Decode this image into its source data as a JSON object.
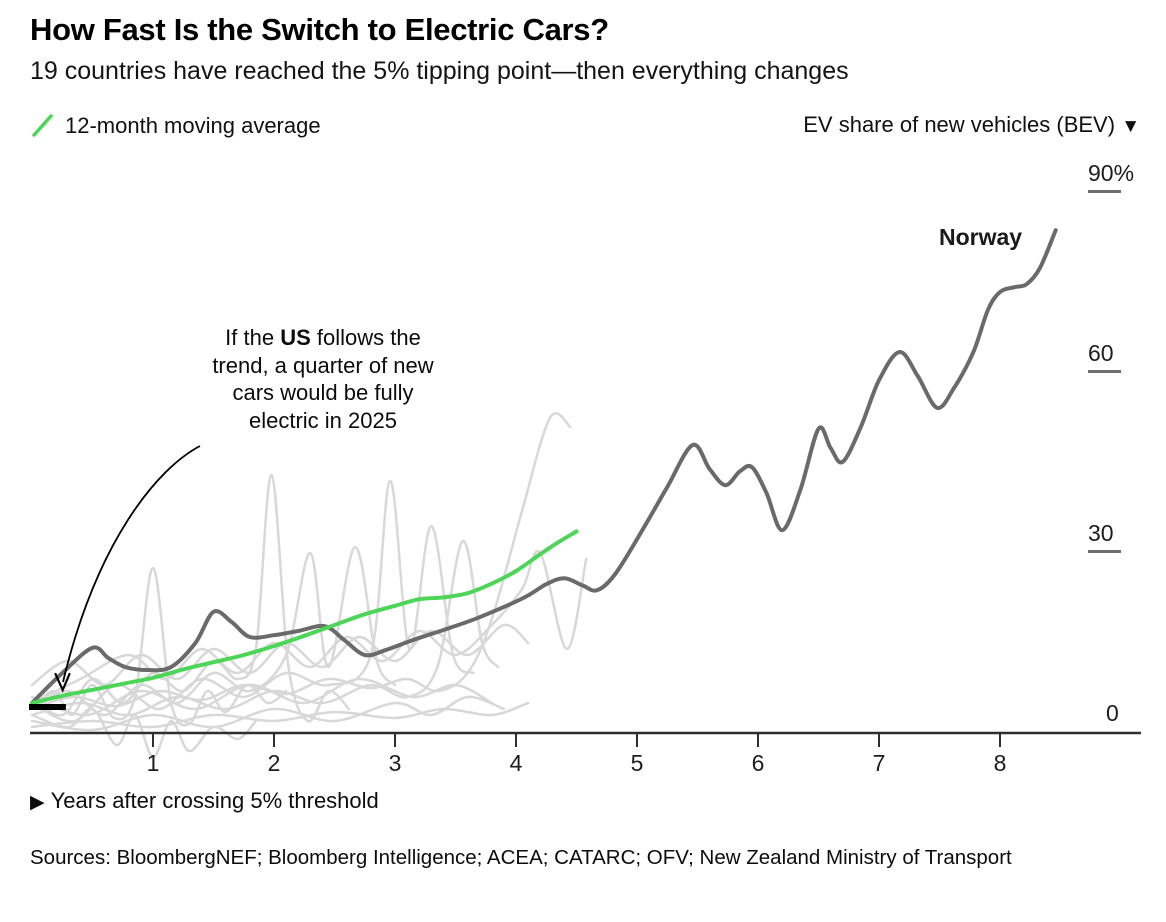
{
  "header": {
    "title": "How Fast Is the Switch to Electric Cars?",
    "subtitle": "19 countries have reached the 5% tipping point—then everything changes"
  },
  "legend": {
    "label": "12-month moving average"
  },
  "axis_header": {
    "label": "EV share of new vehicles (BEV)",
    "icon": "▼"
  },
  "annotation": {
    "pre": "If the ",
    "bold": "US",
    "post": " follows the trend, a quarter of new cars would be fully electric in 2025"
  },
  "series_label": {
    "norway": "Norway"
  },
  "x_axis_caption": {
    "icon": "▶",
    "label": "Years after crossing 5% threshold"
  },
  "sources": "Sources: BloombergNEF; Bloomberg Intelligence; ACEA; CATARC; OFV; New Zealand Ministry of Transport",
  "colors": {
    "norway": "#6a6a6a",
    "moving_average": "#4dd557",
    "background": "#d8d8d8",
    "axis": "#2e2e2e",
    "marker": "#000000"
  },
  "chart_data": {
    "type": "line",
    "title": "How Fast Is the Switch to Electric Cars?",
    "xlabel": "Years after crossing 5% threshold",
    "ylabel": "EV share of new vehicles (BEV), %",
    "xlim": [
      0,
      8.85
    ],
    "ylim": [
      -6,
      95
    ],
    "grid": false,
    "legend_position": "top-left",
    "x_ticks": [
      1,
      2,
      3,
      4,
      5,
      6,
      7,
      8
    ],
    "y_ticks": [
      {
        "label": "90%",
        "value": 90
      },
      {
        "label": "60",
        "value": 60
      },
      {
        "label": "30",
        "value": 30
      },
      {
        "label": "0",
        "value": 0
      }
    ],
    "us_marker": {
      "year_range": [
        0,
        0.28
      ],
      "value": 5
    },
    "series": [
      {
        "role": "background",
        "name": "country-1",
        "points": [
          [
            0,
            4
          ],
          [
            0.18,
            7
          ],
          [
            0.33,
            3
          ],
          [
            0.5,
            8
          ],
          [
            0.68,
            2.5
          ],
          [
            0.85,
            6
          ],
          [
            1.0,
            27.5
          ],
          [
            1.15,
            5
          ],
          [
            1.3,
            1.5
          ],
          [
            1.45,
            7
          ],
          [
            1.6,
            3.5
          ],
          [
            1.78,
            8
          ],
          [
            1.95,
            5
          ],
          [
            2.1,
            7
          ]
        ]
      },
      {
        "role": "background",
        "name": "country-2",
        "points": [
          [
            0,
            6
          ],
          [
            0.25,
            3
          ],
          [
            0.5,
            9
          ],
          [
            0.75,
            5
          ],
          [
            1.0,
            10
          ],
          [
            1.25,
            7
          ],
          [
            1.5,
            12
          ],
          [
            1.7,
            9
          ],
          [
            1.85,
            14
          ],
          [
            1.98,
            43
          ],
          [
            2.12,
            11
          ],
          [
            2.28,
            2
          ],
          [
            2.45,
            7
          ],
          [
            2.62,
            4
          ]
        ]
      },
      {
        "role": "background",
        "name": "country-3",
        "points": [
          [
            0,
            4
          ],
          [
            0.3,
            7
          ],
          [
            0.6,
            3
          ],
          [
            0.9,
            8
          ],
          [
            1.2,
            5
          ],
          [
            1.5,
            10
          ],
          [
            1.8,
            7
          ],
          [
            2.1,
            13
          ],
          [
            2.3,
            30
          ],
          [
            2.45,
            11
          ],
          [
            2.67,
            31
          ],
          [
            2.85,
            12
          ],
          [
            3.0,
            8
          ]
        ]
      },
      {
        "role": "background",
        "name": "country-4",
        "points": [
          [
            0,
            5
          ],
          [
            0.35,
            2
          ],
          [
            0.7,
            8
          ],
          [
            1.05,
            4
          ],
          [
            1.4,
            9
          ],
          [
            1.75,
            6
          ],
          [
            2.1,
            10
          ],
          [
            2.45,
            8
          ],
          [
            2.8,
            13
          ],
          [
            2.96,
            42
          ],
          [
            3.12,
            14
          ],
          [
            3.3,
            34.5
          ],
          [
            3.48,
            13
          ],
          [
            3.65,
            10
          ]
        ]
      },
      {
        "role": "background",
        "name": "country-5",
        "points": [
          [
            0,
            4
          ],
          [
            0.35,
            6
          ],
          [
            0.7,
            4.5
          ],
          [
            1.05,
            7
          ],
          [
            1.4,
            5.5
          ],
          [
            1.75,
            8
          ],
          [
            2.1,
            6.5
          ],
          [
            2.45,
            9
          ],
          [
            2.8,
            7.5
          ],
          [
            3.1,
            9
          ],
          [
            3.35,
            7
          ],
          [
            3.6,
            10
          ],
          [
            3.8,
            19
          ],
          [
            4.05,
            37
          ],
          [
            4.28,
            52.5
          ],
          [
            4.45,
            51
          ]
        ]
      },
      {
        "role": "background",
        "name": "country-6",
        "points": [
          [
            0,
            3
          ],
          [
            0.4,
            5
          ],
          [
            0.8,
            3
          ],
          [
            1.2,
            6
          ],
          [
            1.6,
            4
          ],
          [
            2.0,
            7
          ],
          [
            2.4,
            5
          ],
          [
            2.8,
            8
          ],
          [
            3.1,
            6
          ],
          [
            3.35,
            11
          ],
          [
            3.56,
            32
          ],
          [
            3.72,
            15
          ],
          [
            3.85,
            11
          ]
        ]
      },
      {
        "role": "background",
        "name": "country-7",
        "points": [
          [
            0,
            2
          ],
          [
            0.5,
            0.5
          ],
          [
            1.0,
            3
          ],
          [
            1.5,
            1
          ],
          [
            2.0,
            4
          ],
          [
            2.5,
            2
          ],
          [
            3.0,
            5
          ],
          [
            3.3,
            3
          ],
          [
            3.6,
            6
          ],
          [
            3.9,
            4
          ]
        ]
      },
      {
        "role": "background",
        "name": "country-8",
        "points": [
          [
            0,
            3
          ],
          [
            0.3,
            1
          ],
          [
            0.5,
            4
          ],
          [
            0.7,
            -2
          ],
          [
            0.85,
            3
          ],
          [
            1.0,
            -4
          ],
          [
            1.15,
            2
          ],
          [
            1.3,
            -3
          ],
          [
            1.5,
            1
          ],
          [
            1.7,
            -1
          ],
          [
            1.85,
            2
          ]
        ]
      },
      {
        "role": "background",
        "name": "country-9",
        "points": [
          [
            0,
            5
          ],
          [
            0.4,
            9
          ],
          [
            0.8,
            13
          ],
          [
            1.1,
            9
          ],
          [
            1.4,
            14
          ],
          [
            1.7,
            10
          ],
          [
            2.0,
            15
          ],
          [
            2.3,
            11
          ],
          [
            2.6,
            16
          ],
          [
            2.9,
            12
          ],
          [
            3.2,
            17
          ],
          [
            3.5,
            13
          ],
          [
            3.8,
            18
          ],
          [
            4.05,
            24
          ],
          [
            4.2,
            30
          ],
          [
            4.42,
            14
          ],
          [
            4.58,
            29
          ]
        ]
      },
      {
        "role": "background",
        "name": "country-10",
        "points": [
          [
            0,
            6
          ],
          [
            0.45,
            3
          ],
          [
            0.9,
            7
          ],
          [
            1.35,
            4
          ],
          [
            1.8,
            8
          ],
          [
            2.25,
            5
          ],
          [
            2.7,
            9
          ],
          [
            3.15,
            6
          ],
          [
            3.5,
            8
          ],
          [
            3.8,
            5
          ]
        ]
      },
      {
        "role": "background",
        "name": "country-11",
        "points": [
          [
            0,
            1
          ],
          [
            0.5,
            2
          ],
          [
            1.0,
            1
          ],
          [
            1.5,
            3
          ],
          [
            2.0,
            2
          ],
          [
            2.5,
            3.5
          ],
          [
            3.0,
            2.5
          ],
          [
            3.4,
            4
          ],
          [
            3.8,
            3
          ],
          [
            4.1,
            5
          ]
        ]
      },
      {
        "role": "background",
        "name": "country-12",
        "points": [
          [
            0,
            8
          ],
          [
            0.3,
            12
          ],
          [
            0.6,
            8
          ],
          [
            0.9,
            13
          ],
          [
            1.2,
            9
          ],
          [
            1.5,
            14
          ],
          [
            1.8,
            10
          ],
          [
            2.1,
            15
          ],
          [
            2.4,
            11
          ],
          [
            2.7,
            16
          ],
          [
            3.0,
            12
          ],
          [
            3.3,
            17
          ],
          [
            3.6,
            13
          ],
          [
            3.9,
            18
          ],
          [
            4.1,
            15
          ]
        ]
      },
      {
        "role": "norway",
        "name": "Norway",
        "points": [
          [
            0,
            5
          ],
          [
            0.25,
            10
          ],
          [
            0.5,
            14.2
          ],
          [
            0.63,
            12.5
          ],
          [
            0.77,
            11
          ],
          [
            0.95,
            10.5
          ],
          [
            1.15,
            11
          ],
          [
            1.35,
            15
          ],
          [
            1.5,
            20.2
          ],
          [
            1.65,
            18.5
          ],
          [
            1.8,
            16
          ],
          [
            2.0,
            16.3
          ],
          [
            2.2,
            17
          ],
          [
            2.42,
            17.8
          ],
          [
            2.58,
            15.5
          ],
          [
            2.75,
            13
          ],
          [
            2.92,
            13.8
          ],
          [
            3.15,
            15.5
          ],
          [
            3.45,
            17.5
          ],
          [
            3.7,
            19.3
          ],
          [
            4.06,
            22.5
          ],
          [
            4.25,
            24.8
          ],
          [
            4.4,
            25.8
          ],
          [
            4.55,
            24.6
          ],
          [
            4.67,
            23.8
          ],
          [
            4.82,
            26.5
          ],
          [
            5.05,
            34
          ],
          [
            5.25,
            41
          ],
          [
            5.46,
            48
          ],
          [
            5.6,
            44
          ],
          [
            5.73,
            41.3
          ],
          [
            5.85,
            43.6
          ],
          [
            5.95,
            44.3
          ],
          [
            6.07,
            40
          ],
          [
            6.2,
            33.8
          ],
          [
            6.35,
            40.5
          ],
          [
            6.5,
            50.7
          ],
          [
            6.6,
            47.5
          ],
          [
            6.7,
            45.2
          ],
          [
            6.85,
            51
          ],
          [
            7.0,
            58.8
          ],
          [
            7.17,
            63.5
          ],
          [
            7.32,
            59.5
          ],
          [
            7.48,
            54.2
          ],
          [
            7.62,
            57.5
          ],
          [
            7.78,
            63.5
          ],
          [
            7.9,
            70.5
          ],
          [
            8.0,
            73.5
          ],
          [
            8.12,
            74.3
          ],
          [
            8.22,
            74.8
          ],
          [
            8.33,
            77.5
          ],
          [
            8.46,
            83.8
          ]
        ]
      },
      {
        "role": "average",
        "name": "12-month moving average",
        "points": [
          [
            0,
            5
          ],
          [
            0.25,
            6.2
          ],
          [
            0.5,
            7.2
          ],
          [
            0.75,
            8.2
          ],
          [
            1.0,
            9.2
          ],
          [
            1.25,
            10.6
          ],
          [
            1.5,
            11.8
          ],
          [
            1.75,
            13
          ],
          [
            2.0,
            14.5
          ],
          [
            2.25,
            16.2
          ],
          [
            2.5,
            18
          ],
          [
            2.75,
            19.8
          ],
          [
            3.0,
            21.2
          ],
          [
            3.2,
            22.3
          ],
          [
            3.4,
            22.6
          ],
          [
            3.6,
            23.3
          ],
          [
            3.8,
            24.9
          ],
          [
            4.0,
            27
          ],
          [
            4.2,
            29.8
          ],
          [
            4.35,
            31.8
          ],
          [
            4.5,
            33.6
          ]
        ]
      }
    ]
  }
}
